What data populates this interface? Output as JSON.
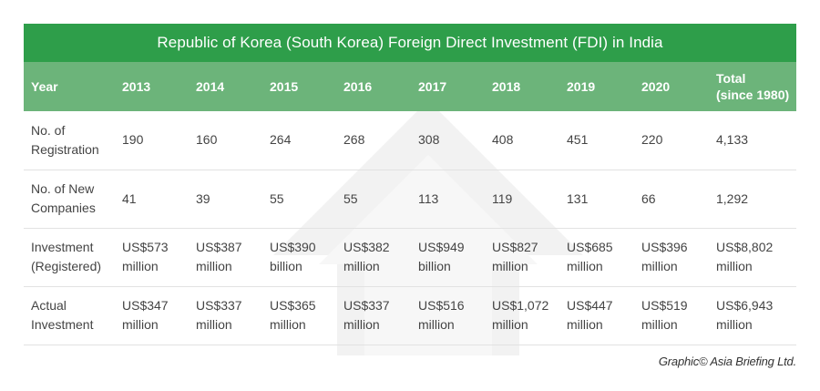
{
  "title": "Republic of Korea (South Korea) Foreign Direct Investment (FDI) in India",
  "headers": [
    "Year",
    "2013",
    "2014",
    "2015",
    "2016",
    "2017",
    "2018",
    "2019",
    "2020",
    "Total\n(since 1980)"
  ],
  "rows": [
    {
      "label": "No. of\nRegistration",
      "cells": [
        "190",
        "160",
        "264",
        "268",
        "308",
        "408",
        "451",
        "220",
        "4,133"
      ]
    },
    {
      "label": "No. of New\nCompanies",
      "cells": [
        "41",
        "39",
        "55",
        "55",
        "113",
        "119",
        "131",
        "66",
        "1,292"
      ]
    },
    {
      "label": "Investment\n(Registered)",
      "cells": [
        "US$573\nmillion",
        "US$387\nmillion",
        "US$390\nbillion",
        "US$382\nmillion",
        "US$949\nbillion",
        "US$827\nmillion",
        "US$685\nmillion",
        "US$396\nmillion",
        "US$8,802\nmillion"
      ]
    },
    {
      "label": "Actual\nInvestment",
      "cells": [
        "US$347\nmillion",
        "US$337\nmillion",
        "US$365\nmillion",
        "US$337\nmillion",
        "US$516\nmillion",
        "US$1,072\nmillion",
        "US$447\nmillion",
        "US$519\nmillion",
        "US$6,943\nmillion"
      ]
    }
  ],
  "credit": "Graphic© Asia Briefing Ltd.",
  "colors": {
    "title_bg": "#2e9e4a",
    "header_bg": "#6cb47a",
    "watermark": "#f1f1f1"
  }
}
